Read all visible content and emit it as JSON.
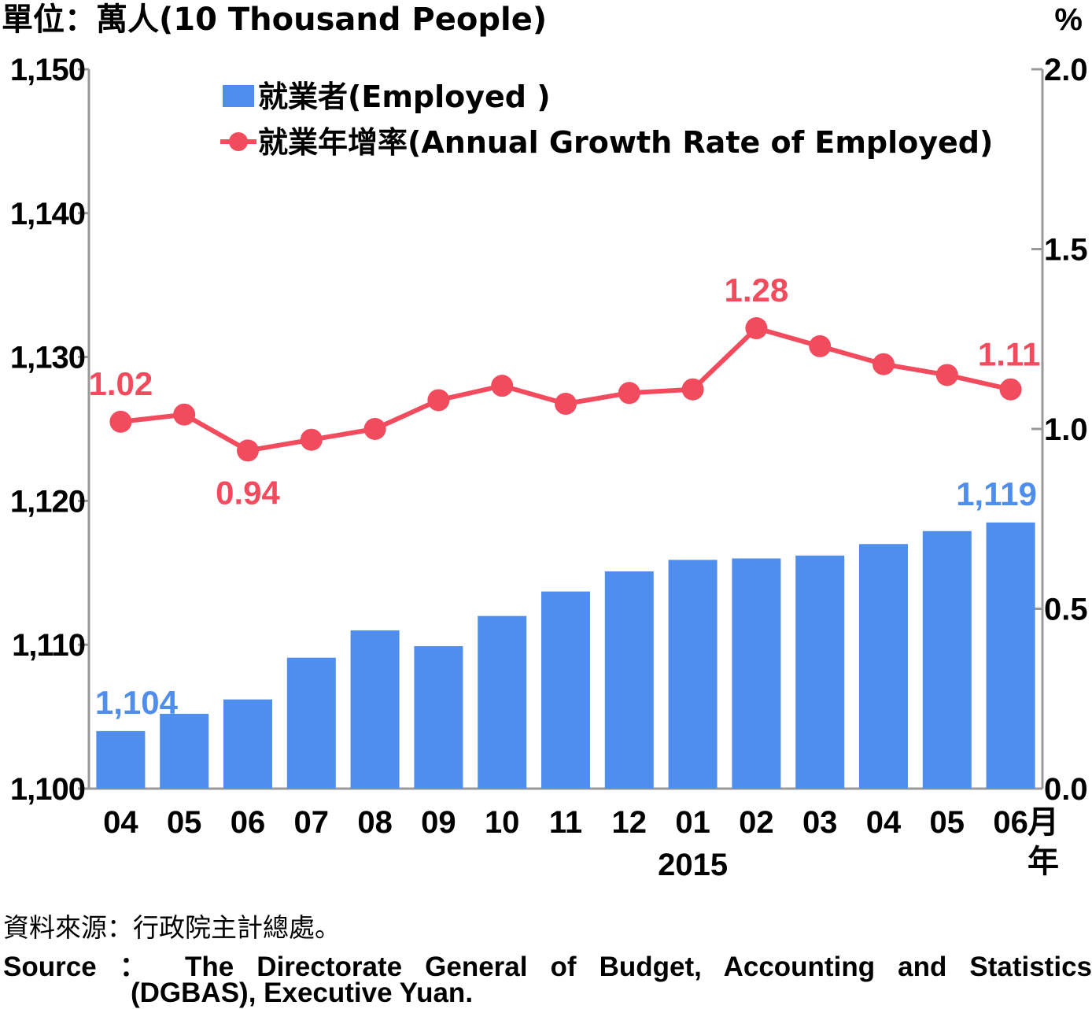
{
  "chart_data": {
    "type": "bar+line",
    "unit_left": "單位：萬人(10 Thousand People)",
    "unit_right": "%",
    "categories": [
      "04",
      "05",
      "06",
      "07",
      "08",
      "09",
      "10",
      "11",
      "12",
      "01",
      "02",
      "03",
      "04",
      "05",
      "06"
    ],
    "month_suffix": "月",
    "year_label": "2015",
    "year_suffix": "年",
    "y_left": {
      "min": 1100,
      "max": 1150,
      "ticks": [
        "1,100",
        "1,110",
        "1,120",
        "1,130",
        "1,140",
        "1,150"
      ],
      "tick_values": [
        1100,
        1110,
        1120,
        1130,
        1140,
        1150
      ]
    },
    "y_right": {
      "min": 0.0,
      "max": 2.0,
      "ticks": [
        "0.0",
        "0.5",
        "1.0",
        "1.5",
        "2.0"
      ],
      "tick_values": [
        0.0,
        0.5,
        1.0,
        1.5,
        2.0
      ]
    },
    "series": [
      {
        "name": "就業者(Employed )",
        "type": "bar",
        "axis": "left",
        "color": "#4f8eec",
        "values": [
          1104.0,
          1105.2,
          1106.2,
          1109.1,
          1111.0,
          1109.9,
          1112.0,
          1113.7,
          1115.1,
          1115.9,
          1116.0,
          1116.2,
          1117.0,
          1117.9,
          1118.5
        ],
        "labels": [
          {
            "index": 0,
            "text": "1,104"
          },
          {
            "index": 14,
            "text": "1,119"
          }
        ]
      },
      {
        "name": "就業年增率(Annual Growth Rate of Employed)",
        "type": "line",
        "axis": "right",
        "color": "#f24b5e",
        "values": [
          1.02,
          1.04,
          0.94,
          0.97,
          1.0,
          1.08,
          1.12,
          1.07,
          1.1,
          1.11,
          1.28,
          1.23,
          1.18,
          1.15,
          1.11
        ],
        "labels": [
          {
            "index": 0,
            "text": "1.02"
          },
          {
            "index": 2,
            "text": "0.94"
          },
          {
            "index": 10,
            "text": "1.28"
          },
          {
            "index": 14,
            "text": "1.11"
          }
        ]
      }
    ]
  },
  "source": {
    "zh": "資料來源：行政院主計總處。",
    "en_line1": "Source ： The Directorate General of Budget, Accounting and Statistics",
    "en_line2": "(DGBAS), Executive Yuan."
  }
}
